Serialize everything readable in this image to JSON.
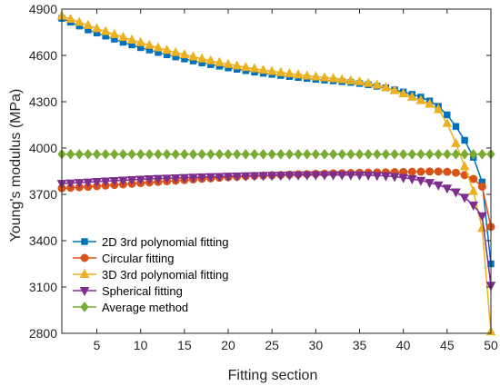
{
  "chart_data": {
    "type": "line",
    "title": "",
    "xlabel": "Fitting section",
    "ylabel": "Young's modulus (MPa)",
    "xlim": [
      1,
      50
    ],
    "ylim": [
      2800,
      4900
    ],
    "xticks": [
      5,
      10,
      15,
      20,
      25,
      30,
      35,
      40,
      45,
      50
    ],
    "yticks": [
      2800,
      3100,
      3400,
      3700,
      4000,
      4300,
      4600,
      4900
    ],
    "grid": false,
    "legend_position": "bottom-left",
    "x": [
      1,
      2,
      3,
      4,
      5,
      6,
      7,
      8,
      9,
      10,
      11,
      12,
      13,
      14,
      15,
      16,
      17,
      18,
      19,
      20,
      21,
      22,
      23,
      24,
      25,
      26,
      27,
      28,
      29,
      30,
      31,
      32,
      33,
      34,
      35,
      36,
      37,
      38,
      39,
      40,
      41,
      42,
      43,
      44,
      45,
      46,
      47,
      48,
      49,
      50
    ],
    "series": [
      {
        "name": "2D 3rd polynomial fitting",
        "color": "#0072BD",
        "marker": "square",
        "values": [
          4840,
          4815,
          4790,
          4765,
          4745,
          4725,
          4705,
          4685,
          4668,
          4650,
          4635,
          4619,
          4604,
          4590,
          4577,
          4564,
          4551,
          4540,
          4530,
          4519,
          4510,
          4501,
          4492,
          4484,
          4477,
          4470,
          4463,
          4457,
          4451,
          4445,
          4440,
          4435,
          4430,
          4425,
          4418,
          4410,
          4400,
          4390,
          4377,
          4363,
          4348,
          4330,
          4305,
          4270,
          4215,
          4140,
          4050,
          3940,
          3780,
          3250
        ]
      },
      {
        "name": "Circular fitting",
        "color": "#D95319",
        "marker": "circle",
        "values": [
          3740,
          3743,
          3746,
          3749,
          3753,
          3757,
          3761,
          3765,
          3769,
          3773,
          3777,
          3781,
          3785,
          3789,
          3793,
          3797,
          3801,
          3804,
          3808,
          3811,
          3814,
          3817,
          3820,
          3822,
          3824,
          3826,
          3828,
          3830,
          3831,
          3833,
          3834,
          3836,
          3837,
          3838,
          3840,
          3841,
          3842,
          3843,
          3844,
          3845,
          3846,
          3847,
          3848,
          3848,
          3846,
          3840,
          3825,
          3800,
          3750,
          3490
        ]
      },
      {
        "name": "3D 3rd polynomial fitting",
        "color": "#EDB120",
        "marker": "triangle-up",
        "values": [
          4855,
          4835,
          4815,
          4795,
          4774,
          4755,
          4736,
          4718,
          4700,
          4683,
          4666,
          4650,
          4634,
          4619,
          4605,
          4591,
          4578,
          4566,
          4554,
          4543,
          4533,
          4523,
          4514,
          4505,
          4497,
          4489,
          4482,
          4475,
          4468,
          4462,
          4456,
          4450,
          4444,
          4437,
          4430,
          4420,
          4408,
          4392,
          4373,
          4352,
          4330,
          4308,
          4285,
          4250,
          4160,
          4030,
          3880,
          3720,
          3480,
          2810
        ]
      },
      {
        "name": "Spherical fitting",
        "color": "#7E2F8E",
        "marker": "triangle-down",
        "values": [
          3770,
          3773,
          3776,
          3779,
          3782,
          3785,
          3788,
          3791,
          3794,
          3797,
          3800,
          3802,
          3804,
          3806,
          3808,
          3810,
          3812,
          3814,
          3815,
          3817,
          3818,
          3819,
          3820,
          3821,
          3822,
          3823,
          3824,
          3825,
          3825,
          3826,
          3826,
          3826,
          3826,
          3826,
          3825,
          3824,
          3822,
          3820,
          3815,
          3808,
          3800,
          3790,
          3776,
          3760,
          3740,
          3715,
          3680,
          3630,
          3560,
          3110
        ]
      },
      {
        "name": "Average method",
        "color": "#77AC30",
        "marker": "diamond",
        "values": [
          3960,
          3960,
          3960,
          3960,
          3960,
          3960,
          3960,
          3960,
          3960,
          3960,
          3960,
          3960,
          3960,
          3960,
          3960,
          3960,
          3960,
          3960,
          3960,
          3960,
          3960,
          3960,
          3960,
          3960,
          3960,
          3960,
          3960,
          3960,
          3960,
          3960,
          3960,
          3960,
          3960,
          3960,
          3960,
          3960,
          3960,
          3960,
          3960,
          3960,
          3960,
          3960,
          3960,
          3960,
          3960,
          3960,
          3960,
          3960,
          3960,
          3960
        ]
      }
    ]
  }
}
